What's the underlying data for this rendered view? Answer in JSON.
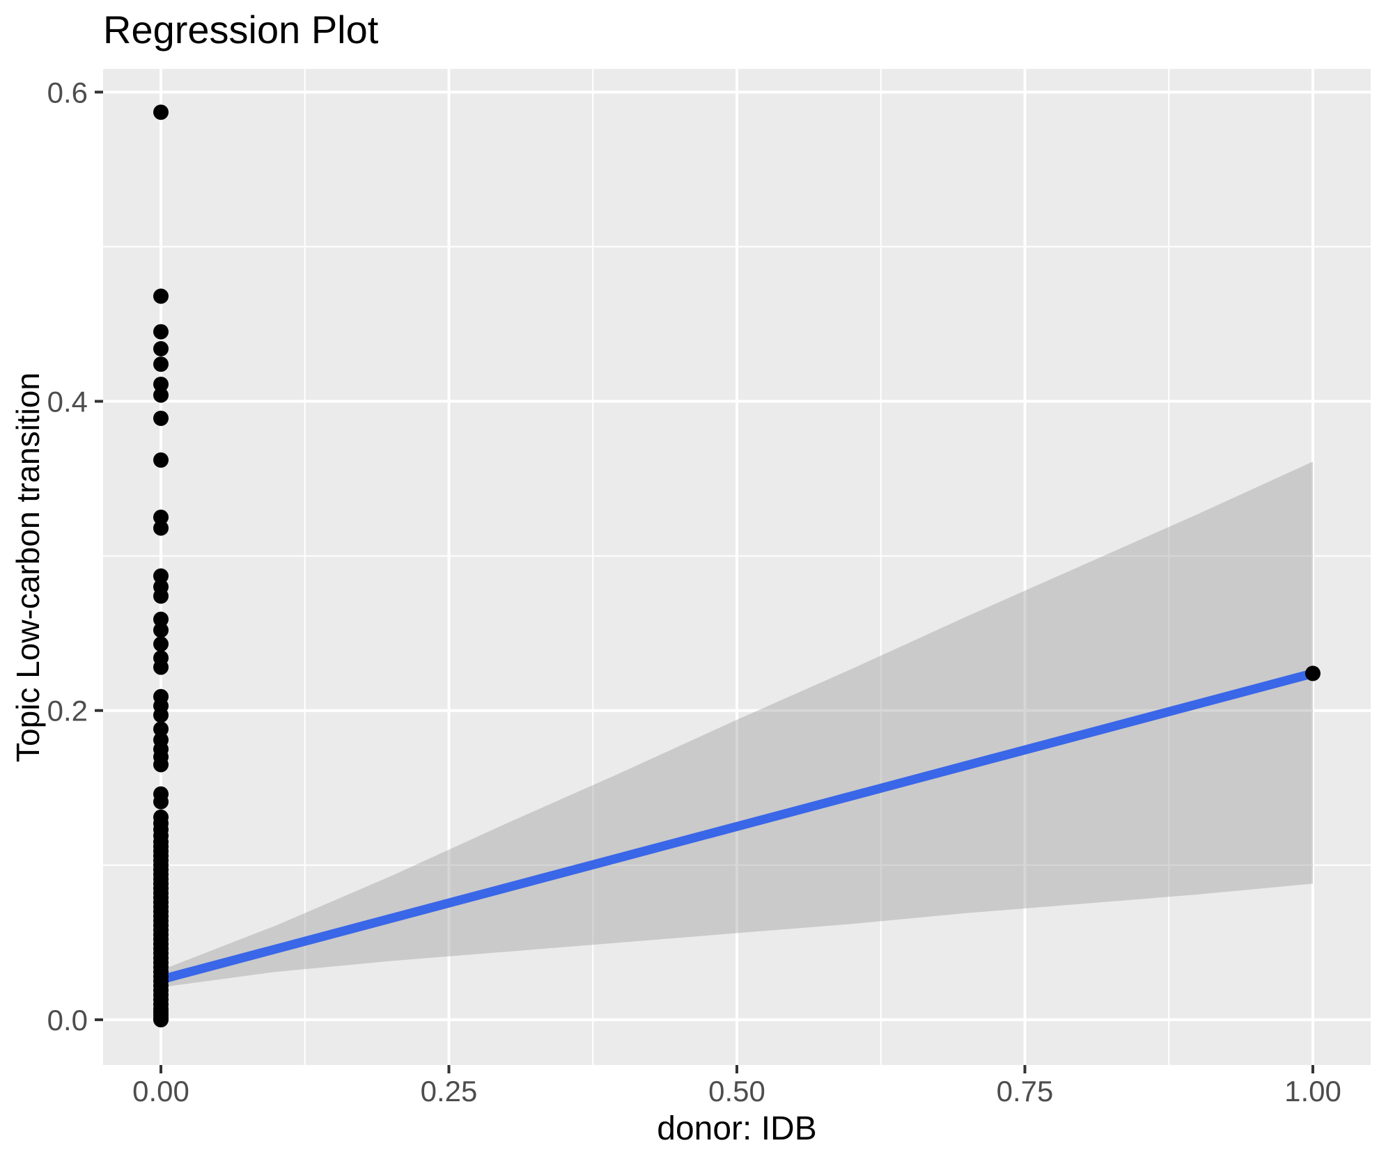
{
  "chart_data": {
    "type": "scatter",
    "title": "Regression Plot",
    "xlabel": "donor: IDB",
    "ylabel": "Topic Low-carbon transition",
    "legend": "none",
    "grid": "major-and-minor, white on gray panel",
    "xlim": [
      -0.0502,
      1.0502
    ],
    "ylim": [
      -0.0293,
      0.615
    ],
    "x_axis": {
      "major_ticks": [
        0,
        0.25,
        0.5,
        0.75,
        1.0
      ],
      "major_labels": [
        "0.00",
        "0.25",
        "0.50",
        "0.75",
        "1.00"
      ],
      "minor_ticks": [
        0.125,
        0.375,
        0.625,
        0.875
      ]
    },
    "y_axis": {
      "major_ticks": [
        0,
        0.2,
        0.4,
        0.6
      ],
      "major_labels": [
        "0.0",
        "0.2",
        "0.4",
        "0.6"
      ],
      "minor_ticks": [
        0.1,
        0.3,
        0.5
      ]
    },
    "points": [
      [
        0,
        0.587
      ],
      [
        0,
        0.468
      ],
      [
        0,
        0.445
      ],
      [
        0,
        0.434
      ],
      [
        0,
        0.424
      ],
      [
        0,
        0.411
      ],
      [
        0,
        0.404
      ],
      [
        0,
        0.389
      ],
      [
        0,
        0.362
      ],
      [
        0,
        0.325
      ],
      [
        0,
        0.318
      ],
      [
        0,
        0.287
      ],
      [
        0,
        0.28
      ],
      [
        0,
        0.274
      ],
      [
        0,
        0.259
      ],
      [
        0,
        0.252
      ],
      [
        0,
        0.243
      ],
      [
        0,
        0.234
      ],
      [
        0,
        0.228
      ],
      [
        0,
        0.209
      ],
      [
        0,
        0.203
      ],
      [
        0,
        0.197
      ],
      [
        0,
        0.188
      ],
      [
        0,
        0.181
      ],
      [
        0,
        0.175
      ],
      [
        0,
        0.17
      ],
      [
        0,
        0.165
      ],
      [
        0,
        0.146
      ],
      [
        0,
        0.141
      ],
      [
        0,
        0.131
      ],
      [
        0,
        0.127
      ],
      [
        0,
        0.123
      ],
      [
        0,
        0.119
      ],
      [
        0,
        0.115
      ],
      [
        0,
        0.112
      ],
      [
        0,
        0.109
      ],
      [
        0,
        0.106
      ],
      [
        0,
        0.103
      ],
      [
        0,
        0.1
      ],
      [
        0,
        0.097
      ],
      [
        0,
        0.094
      ],
      [
        0,
        0.091
      ],
      [
        0,
        0.088
      ],
      [
        0,
        0.085
      ],
      [
        0,
        0.082
      ],
      [
        0,
        0.079
      ],
      [
        0,
        0.076
      ],
      [
        0,
        0.073
      ],
      [
        0,
        0.07
      ],
      [
        0,
        0.067
      ],
      [
        0,
        0.064
      ],
      [
        0,
        0.061
      ],
      [
        0,
        0.058
      ],
      [
        0,
        0.055
      ],
      [
        0,
        0.052
      ],
      [
        0,
        0.049
      ],
      [
        0,
        0.046
      ],
      [
        0,
        0.043
      ],
      [
        0,
        0.04
      ],
      [
        0,
        0.037
      ],
      [
        0,
        0.034
      ],
      [
        0,
        0.031
      ],
      [
        0,
        0.028
      ],
      [
        0,
        0.025
      ],
      [
        0,
        0.022
      ],
      [
        0,
        0.019
      ],
      [
        0,
        0.016
      ],
      [
        0,
        0.013
      ],
      [
        0,
        0.01
      ],
      [
        0,
        0.007
      ],
      [
        0,
        0.005
      ],
      [
        0,
        0.003
      ],
      [
        0,
        0.001
      ],
      [
        0,
        0.0
      ],
      [
        1,
        0.224
      ]
    ],
    "regression_line": {
      "x": [
        0,
        1
      ],
      "y": [
        0.026,
        0.224
      ]
    },
    "confidence_band": {
      "x": [
        0,
        0.1,
        0.2,
        0.3,
        0.4,
        0.5,
        0.6,
        0.7,
        0.8,
        0.9,
        1.0
      ],
      "upper": [
        0.032,
        0.061,
        0.093,
        0.127,
        0.16,
        0.194,
        0.227,
        0.261,
        0.294,
        0.327,
        0.361
      ],
      "lower": [
        0.021,
        0.031,
        0.038,
        0.044,
        0.05,
        0.056,
        0.062,
        0.069,
        0.075,
        0.081,
        0.088
      ]
    },
    "colors": {
      "panel_bg": "#EBEBEB",
      "gridline": "#FFFFFF",
      "point": "#000000",
      "line": "#3A66E8",
      "band": "#999999",
      "band_opacity": "0.4",
      "tick_text": "#4D4D4D",
      "tick_mark": "#333333",
      "title_text": "#000000"
    }
  }
}
